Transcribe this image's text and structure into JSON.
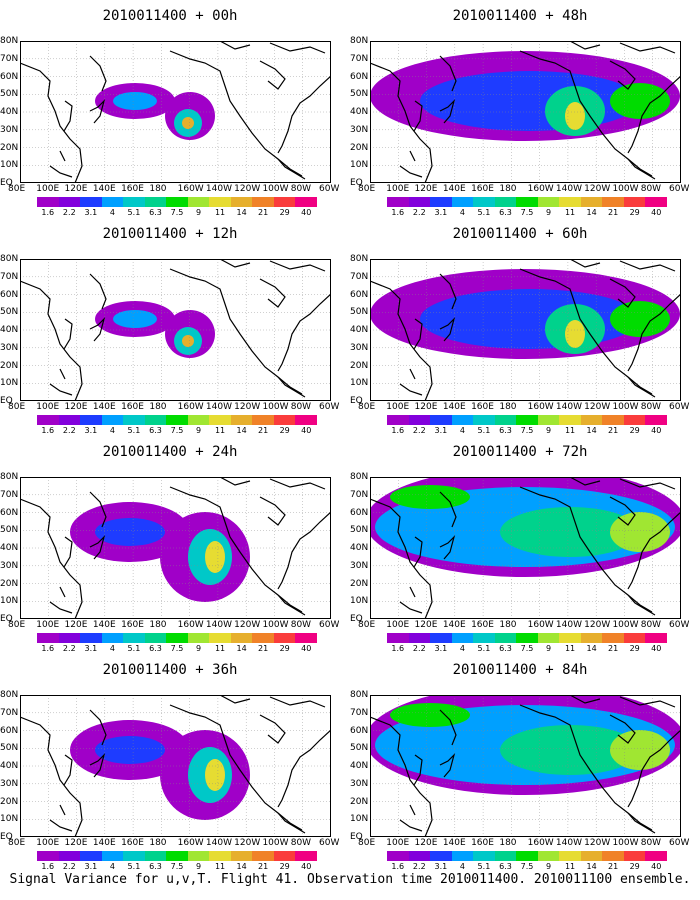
{
  "panels": [
    {
      "title": "2010011400 + 00h",
      "forecast_hour": "00h",
      "coverage": "low"
    },
    {
      "title": "2010011400 + 12h",
      "forecast_hour": "12h",
      "coverage": "low"
    },
    {
      "title": "2010011400 + 24h",
      "forecast_hour": "24h",
      "coverage": "medium"
    },
    {
      "title": "2010011400 + 36h",
      "forecast_hour": "36h",
      "coverage": "medium"
    },
    {
      "title": "2010011400 + 48h",
      "forecast_hour": "48h",
      "coverage": "high"
    },
    {
      "title": "2010011400 + 60h",
      "forecast_hour": "60h",
      "coverage": "high"
    },
    {
      "title": "2010011400 + 72h",
      "forecast_hour": "72h",
      "coverage": "full"
    },
    {
      "title": "2010011400 + 84h",
      "forecast_hour": "84h",
      "coverage": "full"
    }
  ],
  "axes": {
    "lat_labels": [
      "80N",
      "70N",
      "60N",
      "50N",
      "40N",
      "30N",
      "20N",
      "10N",
      "EQ"
    ],
    "lon_labels": [
      "80E",
      "100E",
      "120E",
      "140E",
      "160E",
      "180",
      "160W",
      "140W",
      "120W",
      "100W",
      "80W",
      "60W"
    ]
  },
  "colorbar": {
    "levels": [
      "1.6",
      "2.2",
      "3.1",
      "4",
      "5.1",
      "6.3",
      "7.5",
      "9",
      "11",
      "14",
      "21",
      "29",
      "40"
    ],
    "colors": [
      "#a000c8",
      "#8200dc",
      "#1e3cff",
      "#00a0ff",
      "#00c8c8",
      "#00d28c",
      "#00dc00",
      "#a0e632",
      "#e6dc32",
      "#e6af2d",
      "#f08228",
      "#fa3c3c",
      "#f00082"
    ]
  },
  "caption": "Signal Variance for u,v,T. Flight 41. Observation time 2010011400. 2010011100 ensemble."
}
